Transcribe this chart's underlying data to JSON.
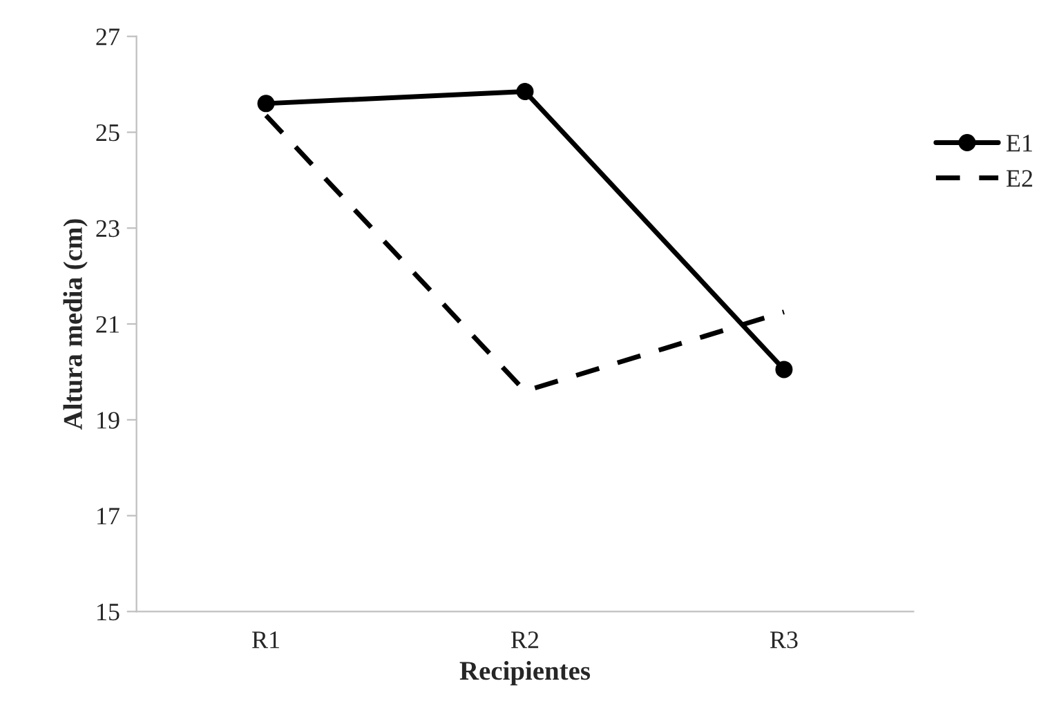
{
  "chart_data": {
    "type": "line",
    "xlabel": "Recipientes",
    "ylabel": "Altura media (cm)",
    "categories": [
      "R1",
      "R2",
      "R3"
    ],
    "series": [
      {
        "name": "E1",
        "color": "#000000",
        "values": [
          25.6,
          25.85,
          20.05
        ],
        "marker": "circle",
        "line_style": "solid"
      },
      {
        "name": "E2",
        "color": "#000000",
        "values": [
          25.35,
          19.6,
          21.25
        ],
        "marker": "none",
        "line_style": "dashed"
      }
    ],
    "ylim": [
      15,
      27
    ],
    "yticks": [
      15,
      17,
      19,
      21,
      23,
      25,
      27
    ],
    "grid": false,
    "legend": "right"
  }
}
